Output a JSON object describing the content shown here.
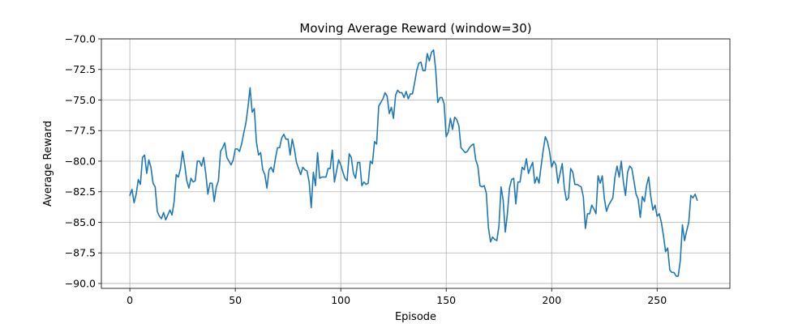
{
  "chart_data": {
    "type": "line",
    "title": "Moving Average Reward (window=30)",
    "xlabel": "Episode",
    "ylabel": "Average Reward",
    "xlim": [
      -13.5,
      284.5
    ],
    "ylim": [
      -90.4,
      -70.0
    ],
    "xticks": [
      0,
      50,
      100,
      150,
      200,
      250
    ],
    "yticks": [
      -70.0,
      -72.5,
      -75.0,
      -77.5,
      -80.0,
      -82.5,
      -85.0,
      -87.5,
      -90.0
    ],
    "xtick_labels": [
      "0",
      "50",
      "100",
      "150",
      "200",
      "250"
    ],
    "ytick_labels": [
      "−70.0",
      "−72.5",
      "−75.0",
      "−77.5",
      "−80.0",
      "−82.5",
      "−85.0",
      "−87.5",
      "−90.0"
    ],
    "grid": true,
    "line_color": "#1f77b4",
    "series": [
      {
        "x_start": 0,
        "values": [
          -82.8,
          -82.3,
          -83.4,
          -82.7,
          -81.5,
          -81.9,
          -79.7,
          -79.5,
          -81.0,
          -79.9,
          -80.5,
          -81.8,
          -82.1,
          -84.1,
          -84.5,
          -84.7,
          -84.2,
          -84.8,
          -84.4,
          -84.0,
          -84.4,
          -83.3,
          -81.1,
          -81.3,
          -80.6,
          -79.2,
          -80.3,
          -81.6,
          -82.2,
          -81.4,
          -81.7,
          -81.6,
          -80.0,
          -80.0,
          -80.4,
          -79.7,
          -81.0,
          -82.7,
          -81.8,
          -81.8,
          -83.3,
          -82.1,
          -81.6,
          -79.2,
          -78.9,
          -78.5,
          -79.7,
          -80.0,
          -80.3,
          -79.9,
          -79.0,
          -79.0,
          -79.2,
          -78.6,
          -77.7,
          -76.9,
          -75.6,
          -74.0,
          -76.0,
          -75.7,
          -78.4,
          -79.5,
          -79.3,
          -80.7,
          -81.1,
          -82.2,
          -80.7,
          -80.5,
          -80.9,
          -79.8,
          -78.9,
          -78.9,
          -78.1,
          -77.8,
          -78.2,
          -78.2,
          -79.5,
          -78.2,
          -79.0,
          -80.1,
          -80.6,
          -81.1,
          -80.5,
          -80.7,
          -80.8,
          -81.7,
          -83.8,
          -80.9,
          -82.0,
          -79.3,
          -81.4,
          -81.3,
          -81.3,
          -81.3,
          -80.6,
          -80.6,
          -79.1,
          -81.7,
          -80.8,
          -79.9,
          -80.3,
          -80.9,
          -81.4,
          -81.6,
          -79.4,
          -79.7,
          -81.0,
          -81.4,
          -80.1,
          -80.1,
          -82.0,
          -81.7,
          -81.9,
          -81.8,
          -80.0,
          -80.2,
          -78.4,
          -78.6,
          -75.5,
          -75.2,
          -74.9,
          -74.4,
          -74.7,
          -76.1,
          -75.6,
          -76.5,
          -74.6,
          -74.2,
          -74.4,
          -74.4,
          -74.8,
          -74.3,
          -74.9,
          -74.5,
          -74.5,
          -73.6,
          -72.6,
          -72.0,
          -71.9,
          -72.6,
          -72.6,
          -71.2,
          -71.8,
          -71.1,
          -70.9,
          -72.5,
          -75.2,
          -74.8,
          -74.8,
          -75.3,
          -78.0,
          -77.6,
          -76.5,
          -77.4,
          -76.4,
          -76.6,
          -77.1,
          -78.9,
          -79.1,
          -79.3,
          -79.2,
          -78.9,
          -78.7,
          -78.6,
          -79.9,
          -80.4,
          -82.0,
          -82.1,
          -82.0,
          -82.6,
          -85.4,
          -86.6,
          -86.2,
          -86.4,
          -86.5,
          -85.3,
          -82.1,
          -83.2,
          -85.8,
          -84.3,
          -82.2,
          -81.5,
          -81.4,
          -83.5,
          -81.7,
          -81.7,
          -80.5,
          -80.7,
          -79.8,
          -81.0,
          -80.5,
          -80.1,
          -81.8,
          -81.3,
          -81.8,
          -80.4,
          -79.1,
          -78.0,
          -78.4,
          -79.2,
          -80.5,
          -80.0,
          -80.3,
          -81.8,
          -81.0,
          -80.2,
          -82.2,
          -83.2,
          -83.0,
          -80.6,
          -80.9,
          -81.9,
          -81.9,
          -82.0,
          -82.1,
          -82.9,
          -85.5,
          -84.3,
          -84.3,
          -83.6,
          -83.9,
          -84.3,
          -81.2,
          -81.8,
          -81.2,
          -83.1,
          -84.1,
          -83.6,
          -83.3,
          -83.0,
          -81.3,
          -80.4,
          -81.3,
          -80.0,
          -81.7,
          -82.8,
          -80.9,
          -80.4,
          -80.6,
          -81.6,
          -82.7,
          -83.1,
          -84.6,
          -82.9,
          -83.3,
          -82.0,
          -81.3,
          -82.9,
          -84.0,
          -83.6,
          -84.5,
          -84.3,
          -85.0,
          -86.1,
          -87.4,
          -87.1,
          -88.9,
          -89.1,
          -89.1,
          -89.4,
          -89.4,
          -88.1,
          -85.2,
          -86.5,
          -85.7,
          -85.0,
          -82.8,
          -83.0,
          -82.7,
          -83.2
        ]
      }
    ]
  }
}
